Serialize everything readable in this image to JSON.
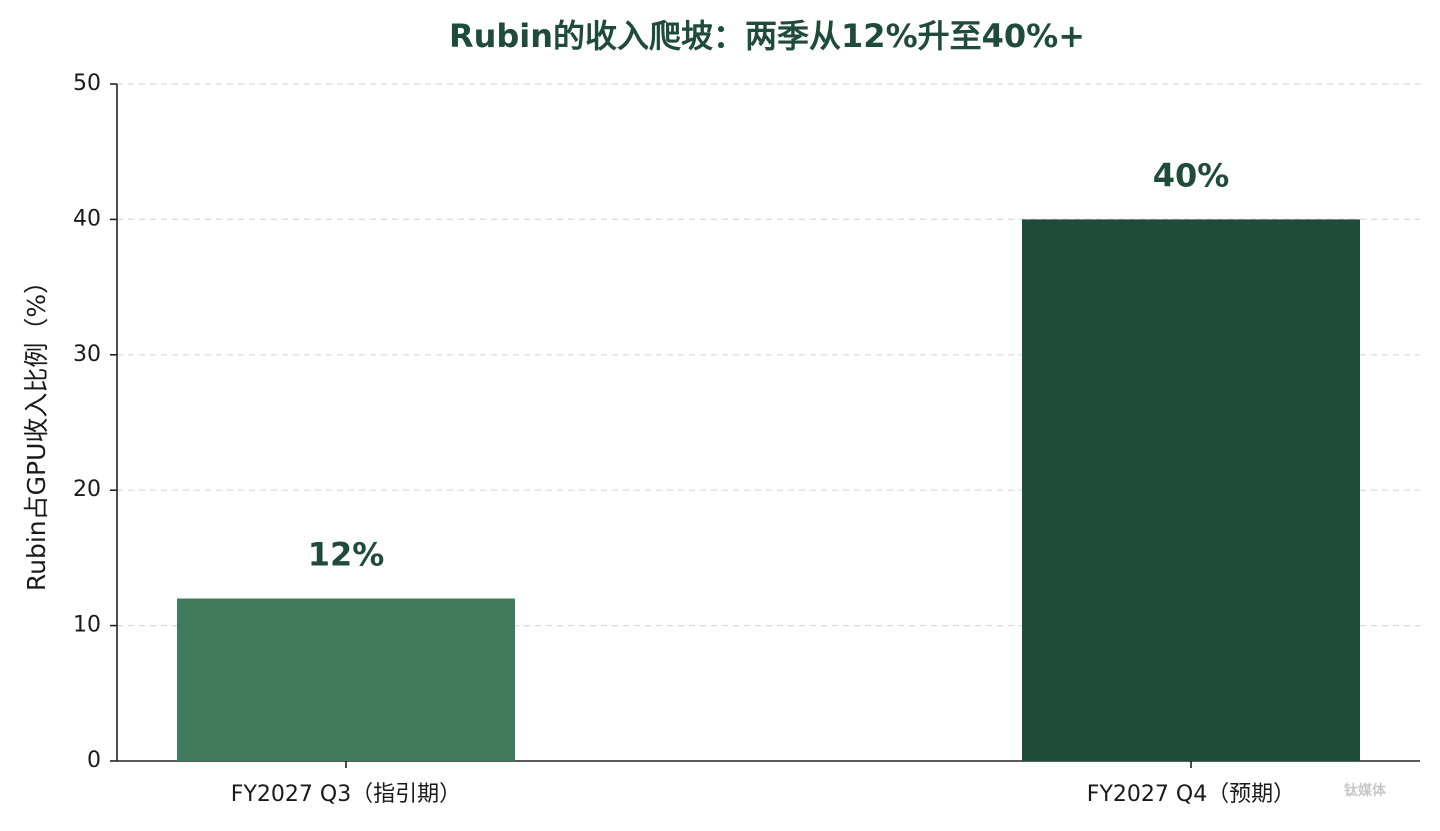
{
  "chart_data": {
    "type": "bar",
    "title": "Rubin的收入爬坡：两季从12%升至40%+",
    "y_label": "Rubin占GPU收入比例（%）",
    "categories": [
      "FY2027 Q3（指引期）",
      "FY2027 Q4（预期）"
    ],
    "values": [
      12,
      40
    ],
    "value_labels": [
      "12%",
      "40%"
    ],
    "colors": [
      "#3f7b5c",
      "#1f4b3b"
    ],
    "ylim": [
      0,
      50
    ],
    "yticks": [
      0,
      10,
      20,
      30,
      40,
      50
    ],
    "grid": true,
    "watermark": "钛媒体"
  }
}
